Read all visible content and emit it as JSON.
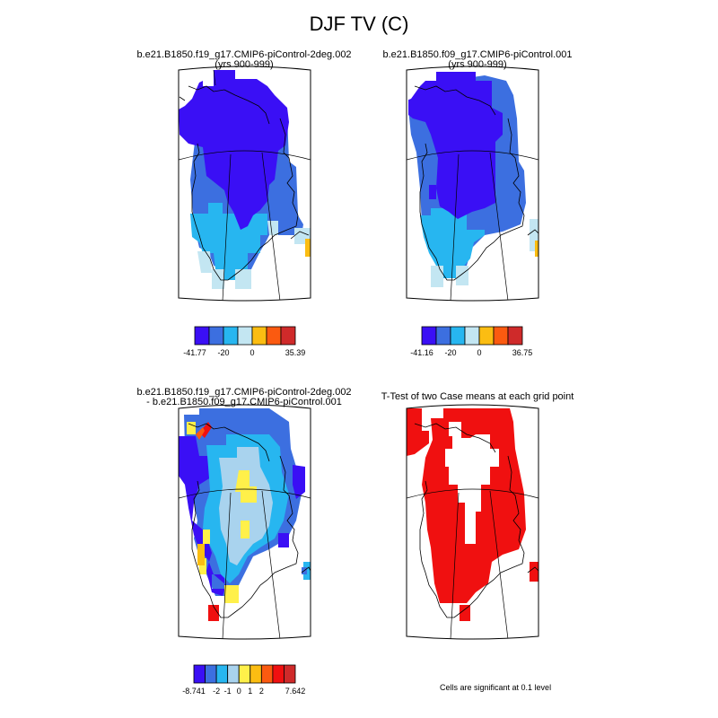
{
  "title": "DJF TV (C)",
  "panels": [
    {
      "id": "case1",
      "title_lines": [
        "b.e21.B1850.f19_g17.CMIP6-piControl-2deg.002",
        "(yrs 900-999)"
      ]
    },
    {
      "id": "case2",
      "title_lines": [
        "b.e21.B1850.f09_g17.CMIP6-piControl.001",
        "(yrs 900-999)"
      ]
    },
    {
      "id": "diff",
      "title_lines": [
        "b.e21.B1850.f19_g17.CMIP6-piControl-2deg.002",
        "- b.e21.B1850.f09_g17.CMIP6-piControl.001"
      ]
    },
    {
      "id": "ttest",
      "title_lines": [
        "T-Test of two Case means at each grid point"
      ]
    }
  ],
  "colorbars": [
    {
      "id": "cb1",
      "colors": [
        "#3a0ff5",
        "#3c6fe0",
        "#27b6f0",
        "#c3e6f2",
        "#fbbd12",
        "#fb5a10",
        "#cf2a2a"
      ],
      "labels": [
        "-41.77",
        "-20",
        "0",
        "35.39"
      ]
    },
    {
      "id": "cb2",
      "colors": [
        "#3a0ff5",
        "#3c6fe0",
        "#27b6f0",
        "#c3e6f2",
        "#fbbd12",
        "#fb5a10",
        "#cf2a2a"
      ],
      "labels": [
        "-41.16",
        "-20",
        "0",
        "36.75"
      ]
    },
    {
      "id": "cb3",
      "colors": [
        "#3a0ff5",
        "#3c6fe0",
        "#27b6f0",
        "#a9d3ee",
        "#fff04a",
        "#fbbd12",
        "#fb5a10",
        "#f01010",
        "#cf2a2a"
      ],
      "labels": [
        "-8.741",
        "-2",
        "-1",
        "0",
        "1",
        "2",
        "7.642"
      ]
    }
  ],
  "significance_note": "Cells are significant at 0.1 level",
  "map_colors": {
    "deep_blue": "#3a0ff5",
    "mid_blue": "#3c6fe0",
    "light_blue": "#27b6f0",
    "pale_blue": "#c3e6f2",
    "diff_pale_blue": "#a9d3ee",
    "yellow": "#fff04a",
    "orange": "#fbbd12",
    "red_orange": "#fb5a10",
    "red": "#f01010"
  }
}
